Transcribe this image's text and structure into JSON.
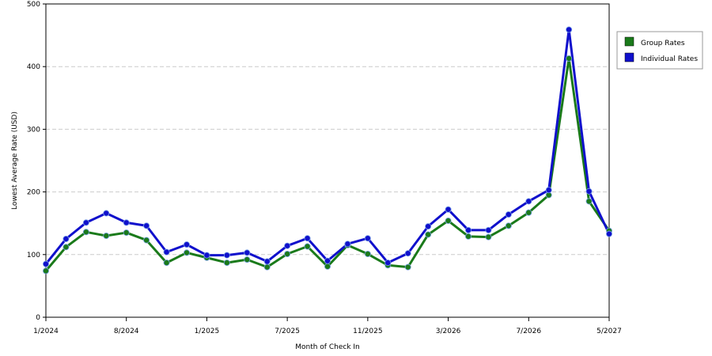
{
  "chart_data": {
    "type": "line",
    "title": "",
    "xlabel": "Month of Check In",
    "ylabel": "Lowest Average Rate (USD)",
    "ylim": [
      0,
      500
    ],
    "yticks": [
      0,
      100,
      200,
      300,
      400,
      500
    ],
    "x_tick_labels": [
      {
        "label": "1/2024",
        "index": 0
      },
      {
        "label": "8/2024",
        "index": 4
      },
      {
        "label": "1/2025",
        "index": 8
      },
      {
        "label": "7/2025",
        "index": 12
      },
      {
        "label": "11/2025",
        "index": 16
      },
      {
        "label": "3/2026",
        "index": 20
      },
      {
        "label": "7/2026",
        "index": 24
      },
      {
        "label": "5/2027",
        "index": 28
      }
    ],
    "point_count": 29,
    "grid": "horizontal dashed",
    "legend_position": "right",
    "series": [
      {
        "name": "Group Rates",
        "color": "#1a7a1a",
        "values": [
          74,
          112,
          136,
          130,
          135,
          123,
          87,
          103,
          95,
          87,
          92,
          80,
          101,
          113,
          81,
          115,
          101,
          83,
          80,
          132,
          154,
          129,
          128,
          146,
          167,
          195,
          413,
          185,
          138
        ]
      },
      {
        "name": "Individual Rates",
        "color": "#1010cc",
        "values": [
          85,
          125,
          151,
          166,
          151,
          146,
          104,
          116,
          99,
          99,
          103,
          89,
          114,
          126,
          90,
          117,
          126,
          87,
          102,
          145,
          172,
          139,
          139,
          164,
          185,
          203,
          459,
          201,
          133
        ]
      }
    ]
  }
}
